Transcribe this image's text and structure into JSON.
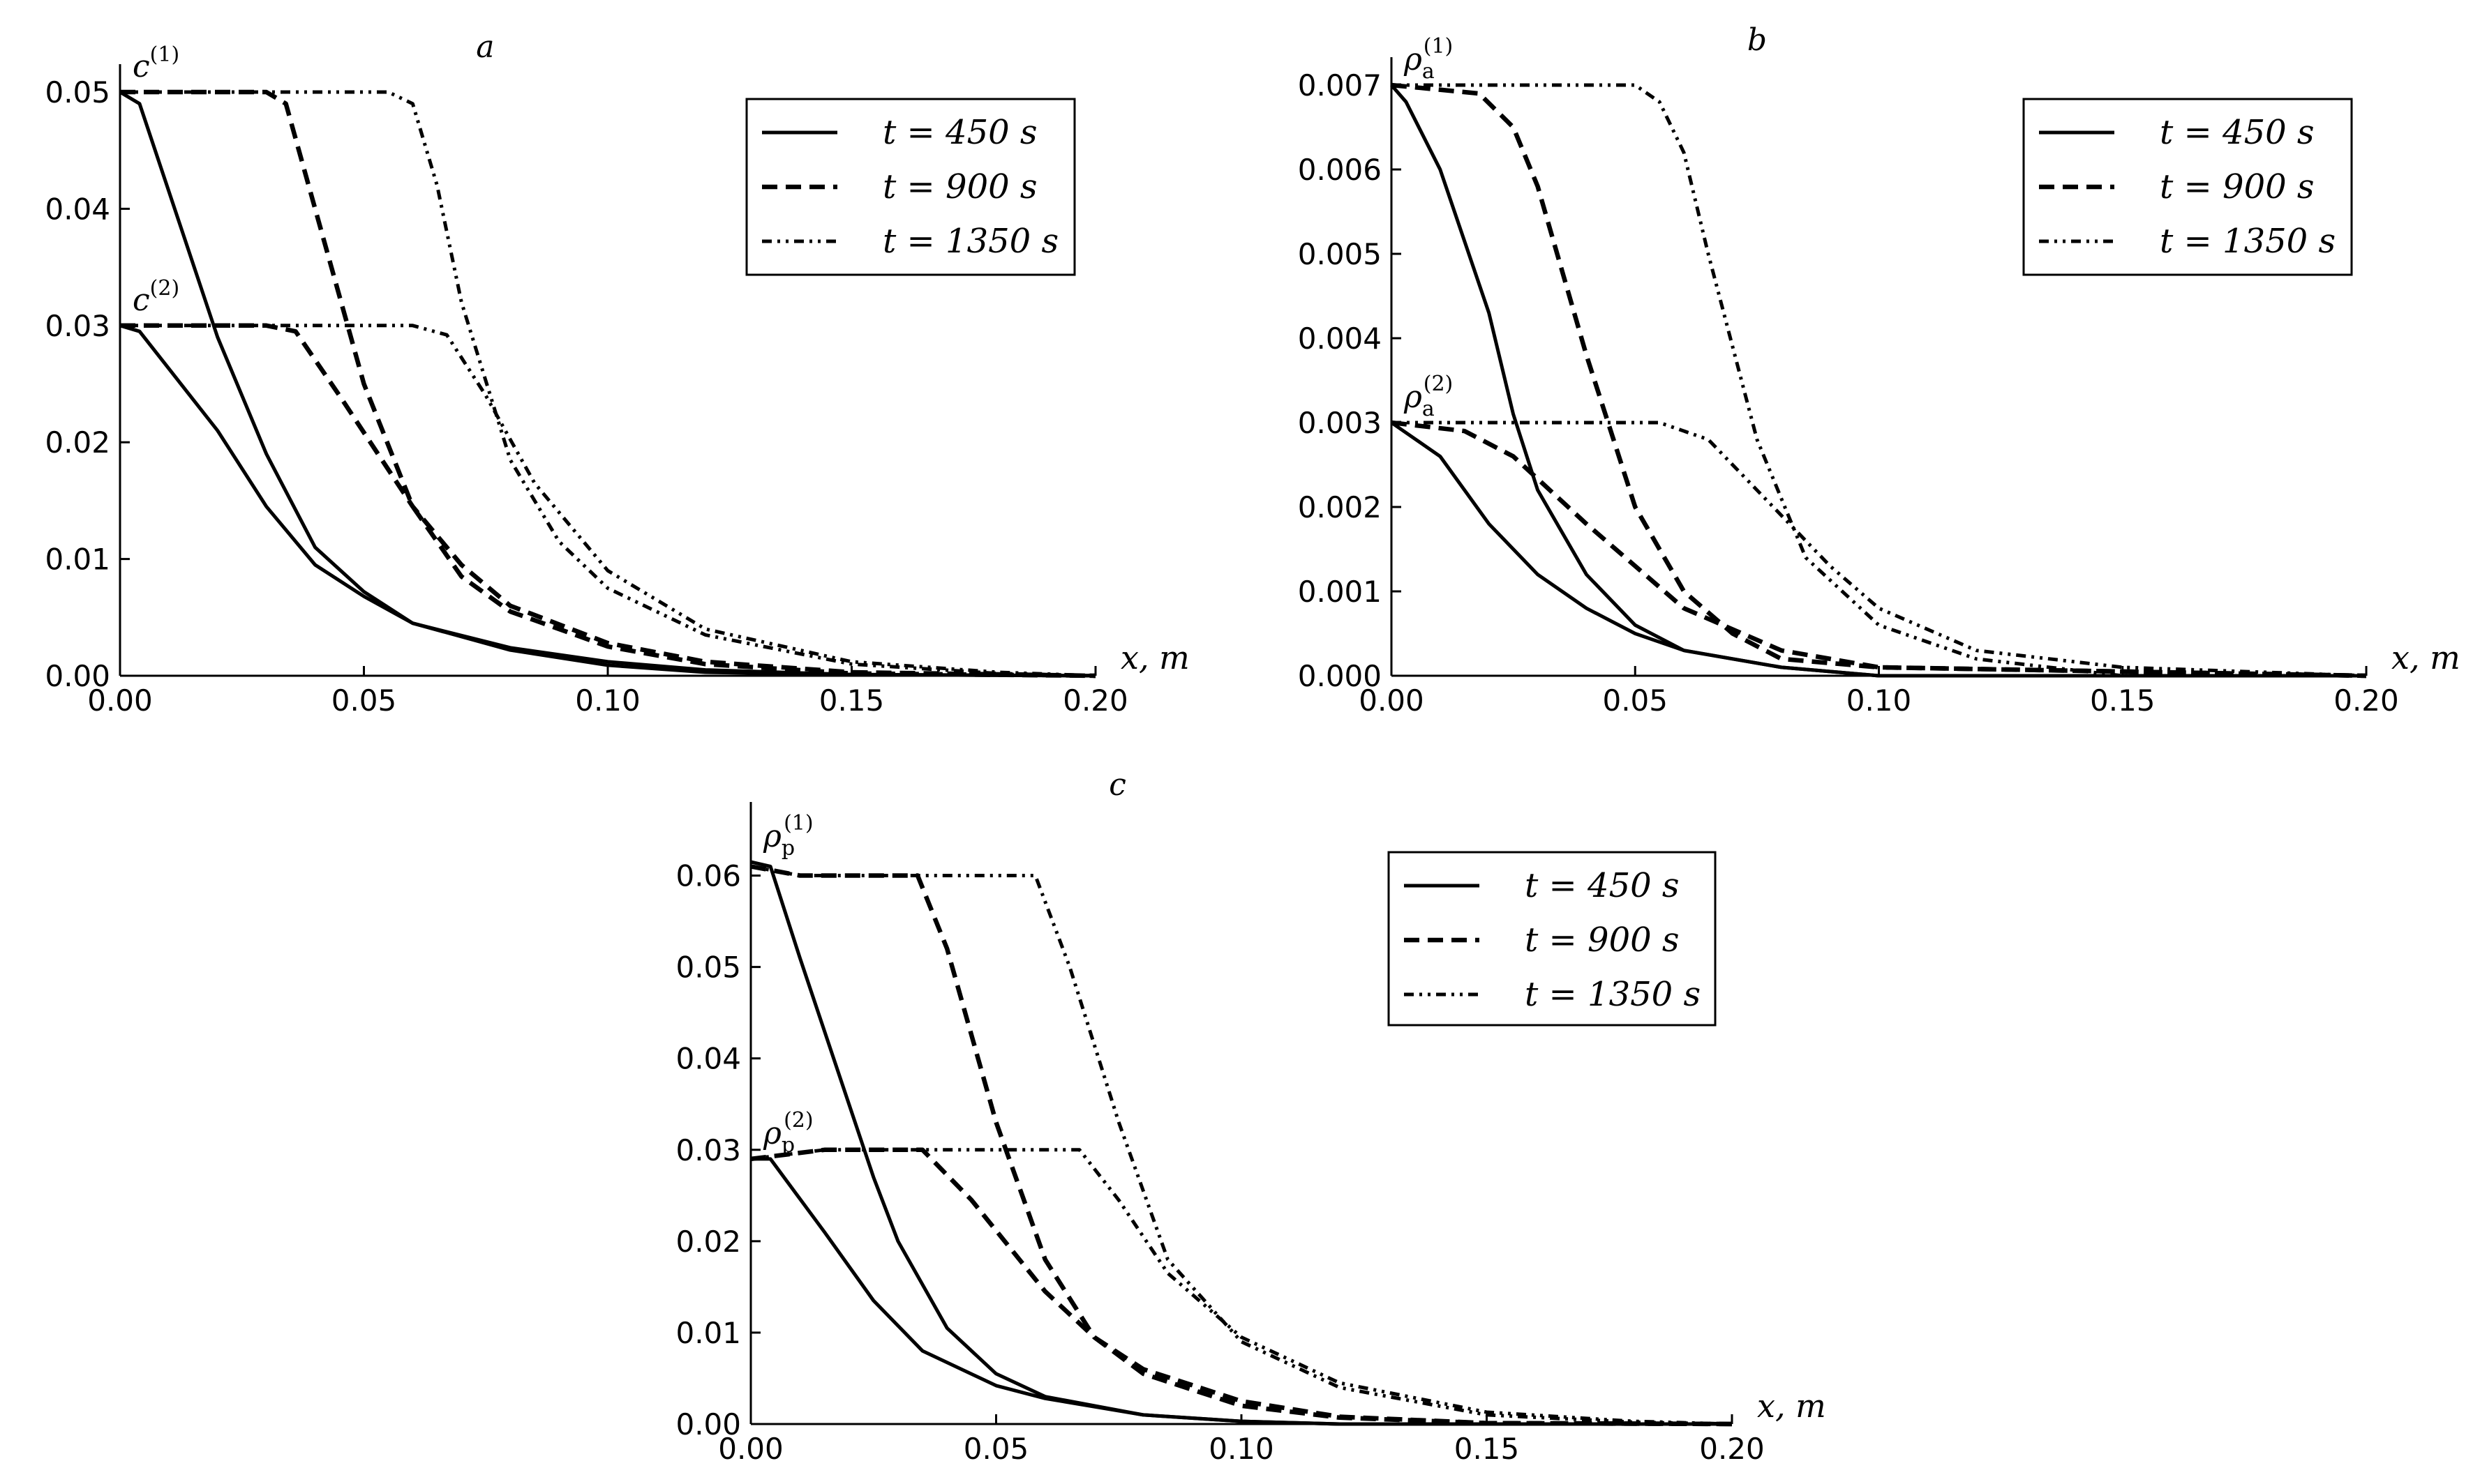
{
  "chart_data": [
    {
      "type": "line",
      "panel_label": "a",
      "xlabel": "x, m",
      "ylabel": "",
      "xlim": [
        0,
        0.2
      ],
      "ylim": [
        0,
        0.05
      ],
      "xticks": [
        "0.00",
        "0.05",
        "0.10",
        "0.15",
        "0.20"
      ],
      "yticks": [
        "0.00",
        "0.01",
        "0.02",
        "0.03",
        "0.04",
        "0.05"
      ],
      "legend": [
        {
          "label": "t = 450 s",
          "style": "solid"
        },
        {
          "label": "t = 900 s",
          "style": "dashed"
        },
        {
          "label": "t = 1350 s",
          "style": "dashdotdot"
        }
      ],
      "legend_position": "top-right",
      "curve_labels": [
        {
          "base": "c",
          "sup": "(1)",
          "sub": ""
        },
        {
          "base": "c",
          "sup": "(2)",
          "sub": ""
        }
      ],
      "series": [
        {
          "name": "c(1), t = 450 s",
          "style": "solid",
          "points": [
            [
              0,
              0.05
            ],
            [
              0.004,
              0.049
            ],
            [
              0.02,
              0.029
            ],
            [
              0.03,
              0.019
            ],
            [
              0.04,
              0.011
            ],
            [
              0.05,
              0.0072
            ],
            [
              0.06,
              0.0045
            ],
            [
              0.08,
              0.0022
            ],
            [
              0.1,
              0.0009
            ],
            [
              0.12,
              0.0003
            ],
            [
              0.15,
              0.0001
            ],
            [
              0.2,
              0
            ]
          ]
        },
        {
          "name": "c(2), t = 450 s",
          "style": "solid",
          "points": [
            [
              0,
              0.03
            ],
            [
              0.004,
              0.0295
            ],
            [
              0.02,
              0.021
            ],
            [
              0.03,
              0.0145
            ],
            [
              0.04,
              0.0095
            ],
            [
              0.05,
              0.0068
            ],
            [
              0.06,
              0.0045
            ],
            [
              0.08,
              0.0024
            ],
            [
              0.1,
              0.0012
            ],
            [
              0.12,
              0.0005
            ],
            [
              0.15,
              0.0001
            ],
            [
              0.2,
              0
            ]
          ]
        },
        {
          "name": "c(1), t = 900 s",
          "style": "dashed",
          "points": [
            [
              0,
              0.05
            ],
            [
              0.03,
              0.05
            ],
            [
              0.034,
              0.049
            ],
            [
              0.04,
              0.04
            ],
            [
              0.05,
              0.025
            ],
            [
              0.06,
              0.0145
            ],
            [
              0.07,
              0.0085
            ],
            [
              0.08,
              0.0055
            ],
            [
              0.1,
              0.0025
            ],
            [
              0.12,
              0.001
            ],
            [
              0.15,
              0.0002
            ],
            [
              0.2,
              0
            ]
          ]
        },
        {
          "name": "c(2), t = 900 s",
          "style": "dashed",
          "points": [
            [
              0,
              0.03
            ],
            [
              0.03,
              0.03
            ],
            [
              0.036,
              0.0295
            ],
            [
              0.045,
              0.024
            ],
            [
              0.06,
              0.0145
            ],
            [
              0.07,
              0.0095
            ],
            [
              0.08,
              0.006
            ],
            [
              0.1,
              0.0028
            ],
            [
              0.12,
              0.0012
            ],
            [
              0.15,
              0.0003
            ],
            [
              0.2,
              0
            ]
          ]
        },
        {
          "name": "c(1), t = 1350 s",
          "style": "dashdotdot",
          "points": [
            [
              0,
              0.05
            ],
            [
              0.055,
              0.05
            ],
            [
              0.06,
              0.049
            ],
            [
              0.065,
              0.042
            ],
            [
              0.07,
              0.032
            ],
            [
              0.08,
              0.0185
            ],
            [
              0.09,
              0.0115
            ],
            [
              0.1,
              0.0075
            ],
            [
              0.12,
              0.0035
            ],
            [
              0.15,
              0.001
            ],
            [
              0.18,
              0.0002
            ],
            [
              0.2,
              0
            ]
          ]
        },
        {
          "name": "c(2), t = 1350 s",
          "style": "dashdotdot",
          "points": [
            [
              0,
              0.03
            ],
            [
              0.06,
              0.03
            ],
            [
              0.067,
              0.0292
            ],
            [
              0.075,
              0.024
            ],
            [
              0.085,
              0.0165
            ],
            [
              0.1,
              0.009
            ],
            [
              0.12,
              0.004
            ],
            [
              0.15,
              0.0012
            ],
            [
              0.18,
              0.0003
            ],
            [
              0.2,
              0
            ]
          ]
        }
      ]
    },
    {
      "type": "line",
      "panel_label": "b",
      "xlabel": "x, m",
      "ylabel": "",
      "xlim": [
        0,
        0.2
      ],
      "ylim": [
        0,
        0.007
      ],
      "xticks": [
        "0.00",
        "0.05",
        "0.10",
        "0.15",
        "0.20"
      ],
      "yticks": [
        "0.000",
        "0.001",
        "0.002",
        "0.003",
        "0.004",
        "0.005",
        "0.006",
        "0.007"
      ],
      "legend": [
        {
          "label": "t = 450 s",
          "style": "solid"
        },
        {
          "label": "t = 900 s",
          "style": "dashed"
        },
        {
          "label": "t = 1350 s",
          "style": "dashdotdot"
        }
      ],
      "legend_position": "top-right",
      "curve_labels": [
        {
          "base": "ρ",
          "sup": "(1)",
          "sub": "a"
        },
        {
          "base": "ρ",
          "sup": "(2)",
          "sub": "a"
        }
      ],
      "series": [
        {
          "name": "ρa(1), t = 450 s",
          "style": "solid",
          "points": [
            [
              0,
              0.007
            ],
            [
              0.003,
              0.0068
            ],
            [
              0.01,
              0.006
            ],
            [
              0.02,
              0.0043
            ],
            [
              0.025,
              0.0031
            ],
            [
              0.03,
              0.0022
            ],
            [
              0.04,
              0.0012
            ],
            [
              0.05,
              0.0006
            ],
            [
              0.06,
              0.0003
            ],
            [
              0.08,
              0.0001
            ],
            [
              0.1,
              0
            ],
            [
              0.2,
              0
            ]
          ]
        },
        {
          "name": "ρa(2), t = 450 s",
          "style": "solid",
          "points": [
            [
              0,
              0.003
            ],
            [
              0.01,
              0.0026
            ],
            [
              0.02,
              0.0018
            ],
            [
              0.03,
              0.0012
            ],
            [
              0.04,
              0.0008
            ],
            [
              0.05,
              0.0005
            ],
            [
              0.06,
              0.0003
            ],
            [
              0.08,
              0.0001
            ],
            [
              0.1,
              0
            ],
            [
              0.2,
              0
            ]
          ]
        },
        {
          "name": "ρa(1), t = 900 s",
          "style": "dashed",
          "points": [
            [
              0,
              0.007
            ],
            [
              0.018,
              0.0069
            ],
            [
              0.025,
              0.0065
            ],
            [
              0.03,
              0.0058
            ],
            [
              0.04,
              0.0038
            ],
            [
              0.05,
              0.002
            ],
            [
              0.06,
              0.001
            ],
            [
              0.07,
              0.0005
            ],
            [
              0.08,
              0.0002
            ],
            [
              0.1,
              0.0001
            ],
            [
              0.2,
              0
            ]
          ]
        },
        {
          "name": "ρa(2), t = 900 s",
          "style": "dashed",
          "points": [
            [
              0,
              0.003
            ],
            [
              0.015,
              0.0029
            ],
            [
              0.025,
              0.0026
            ],
            [
              0.04,
              0.0018
            ],
            [
              0.05,
              0.0013
            ],
            [
              0.06,
              0.0008
            ],
            [
              0.08,
              0.0003
            ],
            [
              0.1,
              0.0001
            ],
            [
              0.2,
              0
            ]
          ]
        },
        {
          "name": "ρa(1), t = 1350 s",
          "style": "dashdotdot",
          "points": [
            [
              0,
              0.007
            ],
            [
              0.05,
              0.007
            ],
            [
              0.055,
              0.0068
            ],
            [
              0.06,
              0.0062
            ],
            [
              0.065,
              0.005
            ],
            [
              0.075,
              0.0028
            ],
            [
              0.085,
              0.0014
            ],
            [
              0.1,
              0.0006
            ],
            [
              0.12,
              0.0002
            ],
            [
              0.15,
              0
            ],
            [
              0.2,
              0
            ]
          ]
        },
        {
          "name": "ρa(2), t = 1350 s",
          "style": "dashdotdot",
          "points": [
            [
              0,
              0.003
            ],
            [
              0.03,
              0.003
            ],
            [
              0.055,
              0.003
            ],
            [
              0.065,
              0.0028
            ],
            [
              0.075,
              0.0022
            ],
            [
              0.09,
              0.0013
            ],
            [
              0.1,
              0.0008
            ],
            [
              0.12,
              0.0003
            ],
            [
              0.15,
              0.0001
            ],
            [
              0.2,
              0
            ]
          ]
        }
      ]
    },
    {
      "type": "line",
      "panel_label": "c",
      "xlabel": "x, m",
      "ylabel": "",
      "xlim": [
        0,
        0.2
      ],
      "ylim": [
        0,
        0.065
      ],
      "xticks": [
        "0.00",
        "0.05",
        "0.10",
        "0.15",
        "0.20"
      ],
      "yticks": [
        "0.00",
        "0.01",
        "0.02",
        "0.03",
        "0.04",
        "0.05",
        "0.06"
      ],
      "legend": [
        {
          "label": "t = 450 s",
          "style": "solid"
        },
        {
          "label": "t = 900 s",
          "style": "dashed"
        },
        {
          "label": "t = 1350 s",
          "style": "dashdotdot"
        }
      ],
      "legend_position": "top-right",
      "curve_labels": [
        {
          "base": "ρ",
          "sup": "(1)",
          "sub": "p"
        },
        {
          "base": "ρ",
          "sup": "(2)",
          "sub": "p"
        }
      ],
      "series": [
        {
          "name": "ρp(1), t = 450 s",
          "style": "solid",
          "points": [
            [
              0,
              0.0615
            ],
            [
              0.004,
              0.061
            ],
            [
              0.01,
              0.051
            ],
            [
              0.02,
              0.035
            ],
            [
              0.025,
              0.027
            ],
            [
              0.03,
              0.02
            ],
            [
              0.04,
              0.0105
            ],
            [
              0.05,
              0.0055
            ],
            [
              0.06,
              0.003
            ],
            [
              0.08,
              0.001
            ],
            [
              0.1,
              0.0003
            ],
            [
              0.12,
              0
            ],
            [
              0.2,
              0
            ]
          ]
        },
        {
          "name": "ρp(2), t = 450 s",
          "style": "solid",
          "points": [
            [
              0,
              0.029
            ],
            [
              0.004,
              0.029
            ],
            [
              0.015,
              0.021
            ],
            [
              0.025,
              0.0135
            ],
            [
              0.035,
              0.008
            ],
            [
              0.05,
              0.0042
            ],
            [
              0.06,
              0.0028
            ],
            [
              0.08,
              0.001
            ],
            [
              0.1,
              0.0003
            ],
            [
              0.12,
              0
            ],
            [
              0.2,
              0
            ]
          ]
        },
        {
          "name": "ρp(1), t = 900 s",
          "style": "dashed",
          "points": [
            [
              0,
              0.061
            ],
            [
              0.01,
              0.06
            ],
            [
              0.034,
              0.06
            ],
            [
              0.04,
              0.052
            ],
            [
              0.05,
              0.033
            ],
            [
              0.06,
              0.018
            ],
            [
              0.07,
              0.0095
            ],
            [
              0.08,
              0.0055
            ],
            [
              0.1,
              0.002
            ],
            [
              0.12,
              0.0007
            ],
            [
              0.15,
              0.0001
            ],
            [
              0.2,
              0
            ]
          ]
        },
        {
          "name": "ρp(2), t = 900 s",
          "style": "dashed",
          "points": [
            [
              0,
              0.029
            ],
            [
              0.015,
              0.03
            ],
            [
              0.035,
              0.03
            ],
            [
              0.045,
              0.0245
            ],
            [
              0.06,
              0.0145
            ],
            [
              0.07,
              0.0095
            ],
            [
              0.08,
              0.006
            ],
            [
              0.1,
              0.0025
            ],
            [
              0.12,
              0.0008
            ],
            [
              0.15,
              0.0001
            ],
            [
              0.2,
              0
            ]
          ]
        },
        {
          "name": "ρp(1), t = 1350 s",
          "style": "dashdotdot",
          "points": [
            [
              0,
              0.061
            ],
            [
              0.01,
              0.06
            ],
            [
              0.058,
              0.06
            ],
            [
              0.065,
              0.05
            ],
            [
              0.075,
              0.033
            ],
            [
              0.085,
              0.018
            ],
            [
              0.1,
              0.009
            ],
            [
              0.12,
              0.004
            ],
            [
              0.15,
              0.001
            ],
            [
              0.18,
              0.0002
            ],
            [
              0.2,
              0
            ]
          ]
        },
        {
          "name": "ρp(2), t = 1350 s",
          "style": "dashdotdot",
          "points": [
            [
              0,
              0.029
            ],
            [
              0.015,
              0.03
            ],
            [
              0.067,
              0.03
            ],
            [
              0.075,
              0.0245
            ],
            [
              0.085,
              0.0165
            ],
            [
              0.1,
              0.0095
            ],
            [
              0.12,
              0.0045
            ],
            [
              0.15,
              0.0013
            ],
            [
              0.18,
              0.0003
            ],
            [
              0.2,
              0
            ]
          ]
        }
      ]
    }
  ]
}
